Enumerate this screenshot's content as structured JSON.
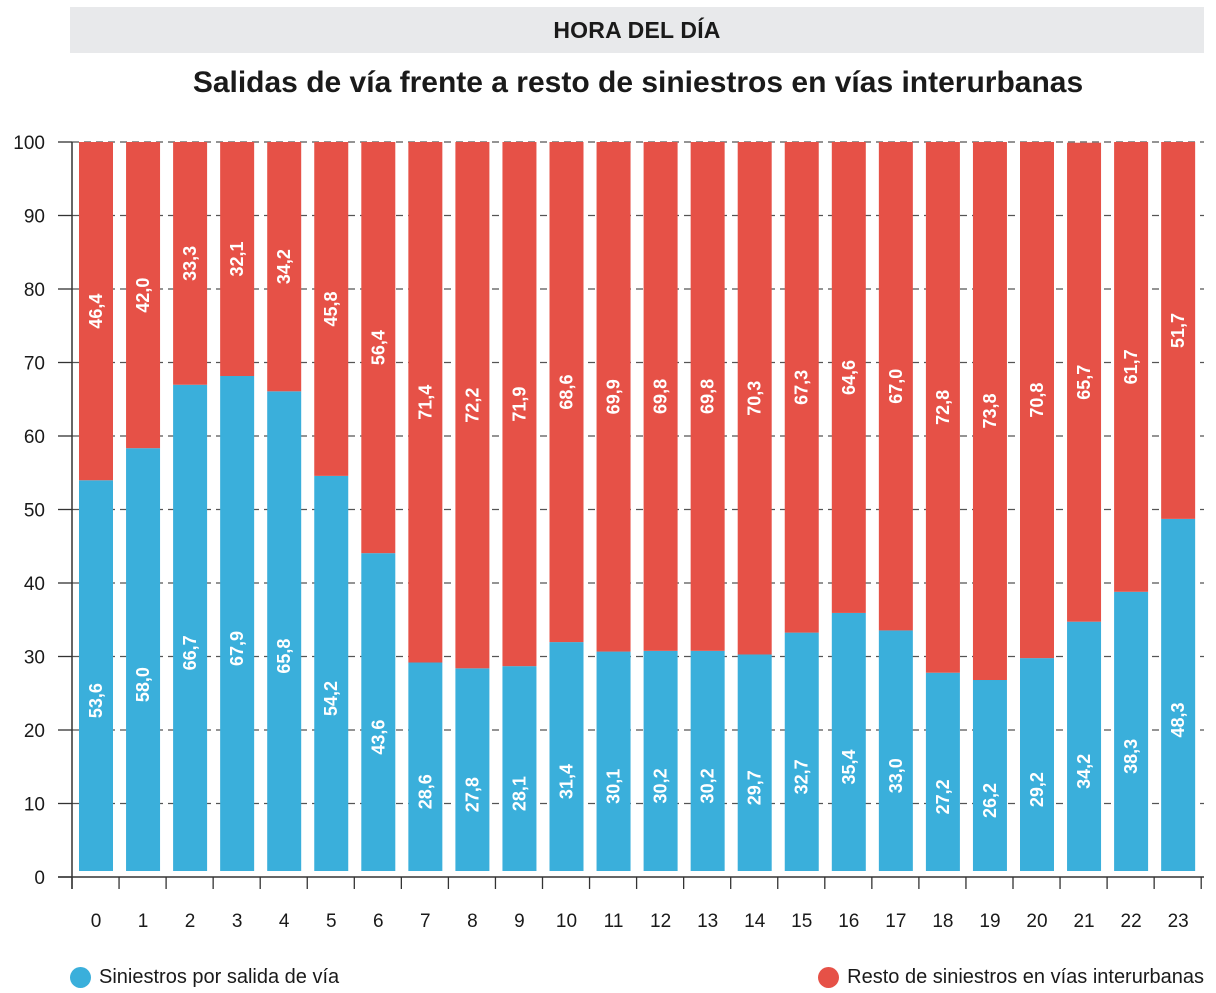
{
  "header": {
    "section_label": "HORA DEL DÍA"
  },
  "chart_data": {
    "type": "bar",
    "stacked": true,
    "orientation": "vertical",
    "title": "Salidas de vía frente a resto de siniestros en vías interurbanas",
    "xlabel": "",
    "ylabel": "",
    "ylim": [
      0,
      100
    ],
    "yticks": [
      0,
      10,
      20,
      30,
      40,
      50,
      60,
      70,
      80,
      90,
      100
    ],
    "grid": "horizontal-dashed",
    "legend_position": "bottom",
    "categories": [
      "0",
      "1",
      "2",
      "3",
      "4",
      "5",
      "6",
      "7",
      "8",
      "9",
      "10",
      "11",
      "12",
      "13",
      "14",
      "15",
      "16",
      "17",
      "18",
      "19",
      "20",
      "21",
      "22",
      "23"
    ],
    "series": [
      {
        "name": "Siniestros por salida de vía",
        "color": "#3aafdb",
        "values": [
          53.6,
          58.0,
          66.7,
          67.9,
          65.8,
          54.2,
          43.6,
          28.6,
          27.8,
          28.1,
          31.4,
          30.1,
          30.2,
          30.2,
          29.7,
          32.7,
          35.4,
          33.0,
          27.2,
          26.2,
          29.2,
          34.2,
          38.3,
          48.3
        ],
        "labels": [
          "53,6",
          "58,0",
          "66,7",
          "67,9",
          "65,8",
          "54,2",
          "43,6",
          "28,6",
          "27,8",
          "28,1",
          "31,4",
          "30,1",
          "30,2",
          "30,2",
          "29,7",
          "32,7",
          "35,4",
          "33,0",
          "27,2",
          "26,2",
          "29,2",
          "34,2",
          "38,3",
          "48,3"
        ]
      },
      {
        "name": "Resto de siniestros en vías interurbanas",
        "color": "#e65147",
        "values": [
          46.4,
          42.0,
          33.3,
          32.1,
          34.2,
          45.8,
          56.4,
          71.4,
          72.2,
          71.9,
          68.6,
          69.9,
          69.8,
          69.8,
          70.3,
          67.3,
          64.6,
          67.0,
          72.8,
          73.8,
          70.8,
          65.7,
          61.7,
          51.7
        ],
        "labels": [
          "46,4",
          "42,0",
          "33,3",
          "32,1",
          "34,2",
          "45,8",
          "56,4",
          "71,4",
          "72,2",
          "71,9",
          "68,6",
          "69,9",
          "69,8",
          "69,8",
          "70,3",
          "67,3",
          "64,6",
          "67,0",
          "72,8",
          "73,8",
          "70,8",
          "65,7",
          "61,7",
          "51,7"
        ]
      }
    ]
  },
  "legend": {
    "items": [
      {
        "label": "Siniestros por salida de vía",
        "color": "#3aafdb"
      },
      {
        "label": "Resto de siniestros en vías interurbanas",
        "color": "#e65147"
      }
    ]
  }
}
